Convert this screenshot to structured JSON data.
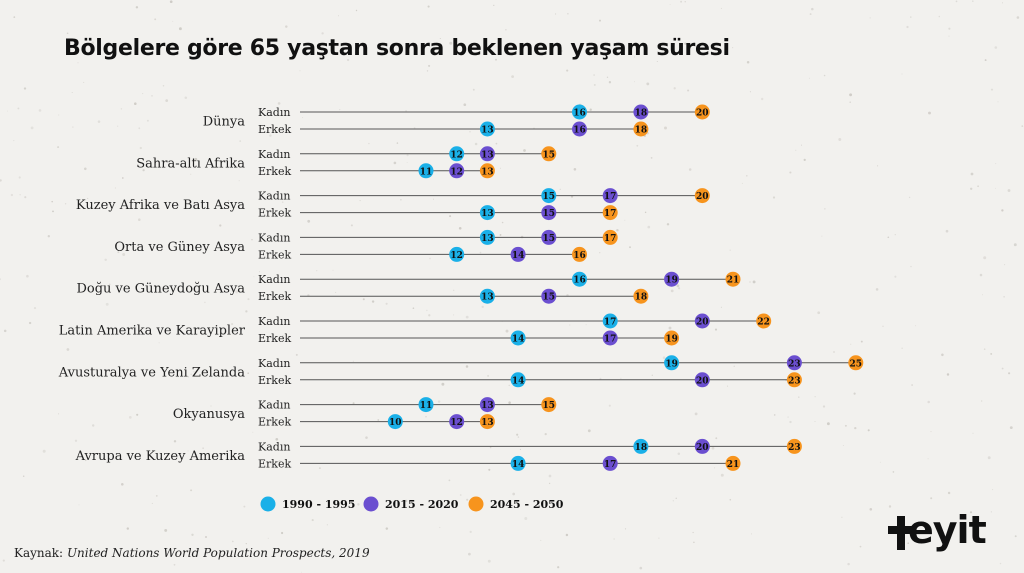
{
  "title": "Bölgelere göre 65 yaştan sonra beklenen yaşam süresi",
  "source_label": "Kaynak:",
  "source_text": "United Nations World Population Prospects, 2019",
  "logo_text": "eyit",
  "colors": {
    "1990-1995": "#1ab0e8",
    "2015-2020": "#6b4fd0",
    "2045-2050": "#f7941d",
    "line": "#555555",
    "text": "#222222"
  },
  "chart_data": {
    "type": "scatter",
    "title": "Bölgelere göre 65 yaştan sonra beklenen yaşam süresi",
    "xlim": [
      8,
      25.5
    ],
    "grid": false,
    "legend": {
      "position": "bottom-left",
      "entries": [
        "1990 - 1995",
        "2015 - 2020",
        "2045 - 2050"
      ]
    },
    "series": [
      {
        "name": "1990 - 1995",
        "color": "#1ab0e8"
      },
      {
        "name": "2015 - 2020",
        "color": "#6b4fd0"
      },
      {
        "name": "2045 - 2050",
        "color": "#f7941d"
      }
    ],
    "regions": [
      {
        "name": "Dünya",
        "rows": [
          {
            "label": "Kadın",
            "values": [
              16,
              18,
              20
            ]
          },
          {
            "label": "Erkek",
            "values": [
              13,
              16,
              18
            ]
          }
        ]
      },
      {
        "name": "Sahra-altı Afrika",
        "rows": [
          {
            "label": "Kadın",
            "values": [
              12,
              13,
              15
            ]
          },
          {
            "label": "Erkek",
            "values": [
              11,
              12,
              13
            ]
          }
        ]
      },
      {
        "name": "Kuzey Afrika ve Batı Asya",
        "rows": [
          {
            "label": "Kadın",
            "values": [
              15,
              17,
              20
            ]
          },
          {
            "label": "Erkek",
            "values": [
              13,
              15,
              17
            ]
          }
        ]
      },
      {
        "name": "Orta ve Güney Asya",
        "rows": [
          {
            "label": "Kadın",
            "values": [
              13,
              15,
              17
            ]
          },
          {
            "label": "Erkek",
            "values": [
              12,
              14,
              16
            ]
          }
        ]
      },
      {
        "name": "Doğu ve Güneydoğu Asya",
        "rows": [
          {
            "label": "Kadın",
            "values": [
              16,
              19,
              21
            ]
          },
          {
            "label": "Erkek",
            "values": [
              13,
              15,
              18
            ]
          }
        ]
      },
      {
        "name": "Latin Amerika ve Karayipler",
        "rows": [
          {
            "label": "Kadın",
            "values": [
              17,
              20,
              22
            ]
          },
          {
            "label": "Erkek",
            "values": [
              14,
              17,
              19
            ]
          }
        ]
      },
      {
        "name": "Avusturalya ve Yeni Zelanda",
        "rows": [
          {
            "label": "Kadın",
            "values": [
              19,
              23,
              25
            ]
          },
          {
            "label": "Erkek",
            "values": [
              14,
              20,
              23
            ]
          }
        ]
      },
      {
        "name": "Okyanusya",
        "rows": [
          {
            "label": "Kadın",
            "values": [
              11,
              13,
              15
            ]
          },
          {
            "label": "Erkek",
            "values": [
              10,
              12,
              13
            ]
          }
        ]
      },
      {
        "name": "Avrupa ve Kuzey Amerika",
        "rows": [
          {
            "label": "Kadın",
            "values": [
              18,
              20,
              23
            ]
          },
          {
            "label": "Erkek",
            "values": [
              14,
              17,
              21
            ]
          }
        ]
      }
    ]
  }
}
